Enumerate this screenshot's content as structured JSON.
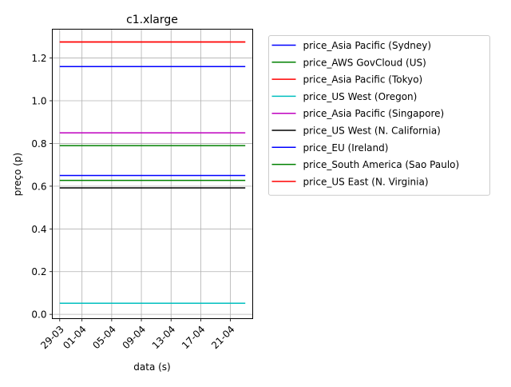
{
  "chart_data": {
    "type": "line",
    "title": "c1.xlarge",
    "xlabel": "data (s)",
    "ylabel": "preço (p)",
    "x_tick_labels": [
      "29-03",
      "01-04",
      "05-04",
      "09-04",
      "13-04",
      "17-04",
      "21-04"
    ],
    "x_tick_dates": [
      "2016-03-29",
      "2016-04-01",
      "2016-04-05",
      "2016-04-09",
      "2016-04-13",
      "2016-04-17",
      "2016-04-21"
    ],
    "x_range": [
      "2016-03-28",
      "2016-04-24"
    ],
    "x": [
      "2016-03-29",
      "2016-04-23"
    ],
    "ylim": [
      -0.02,
      1.335
    ],
    "y_ticks": [
      "0.0",
      "0.2",
      "0.4",
      "0.6",
      "0.8",
      "1.0",
      "1.2"
    ],
    "grid": true,
    "legend_placement": "outside right, top",
    "series": [
      {
        "name": "price_Asia Pacific (Sydney)",
        "color": "#0000ff",
        "values": [
          1.16,
          1.16
        ]
      },
      {
        "name": "price_AWS GovCloud (US)",
        "color": "#008000",
        "values": [
          0.79,
          0.79
        ]
      },
      {
        "name": "price_Asia Pacific (Tokyo)",
        "color": "#ff0000",
        "values": [
          1.275,
          1.275
        ]
      },
      {
        "name": "price_US West (Oregon)",
        "color": "#00bfbf",
        "values": [
          0.052,
          0.052
        ]
      },
      {
        "name": "price_Asia Pacific (Singapore)",
        "color": "#bf00bf",
        "values": [
          0.85,
          0.85
        ]
      },
      {
        "name": "price_US West (N. California)",
        "color": "#000000",
        "values": [
          0.592,
          0.592
        ]
      },
      {
        "name": "price_EU (Ireland)",
        "color": "#0000ff",
        "values": [
          0.65,
          0.65
        ]
      },
      {
        "name": "price_South America (Sao Paulo)",
        "color": "#008000",
        "values": [
          0.627,
          0.627
        ]
      },
      {
        "name": "price_US East (N. Virginia)",
        "color": "#ff0000",
        "values": [
          1.275,
          1.275
        ]
      }
    ]
  }
}
